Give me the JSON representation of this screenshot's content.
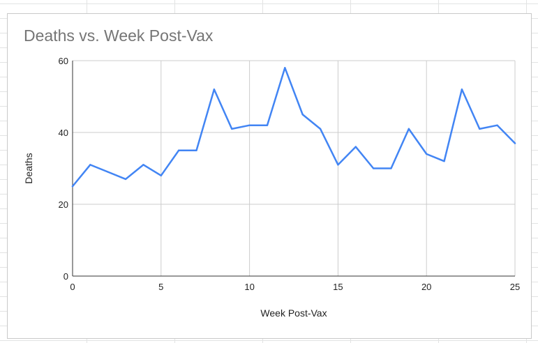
{
  "chart_data": {
    "type": "line",
    "title": "Deaths vs. Week Post-Vax",
    "xlabel": "Week Post-Vax",
    "ylabel": "Deaths",
    "xlim": [
      0,
      25
    ],
    "ylim": [
      0,
      60
    ],
    "x_ticks": [
      0,
      5,
      10,
      15,
      20,
      25
    ],
    "y_ticks": [
      0,
      20,
      40,
      60
    ],
    "grid": true,
    "series": [
      {
        "color": "#4285f4",
        "x": [
          0,
          1,
          2,
          3,
          4,
          5,
          6,
          7,
          8,
          9,
          10,
          11,
          12,
          13,
          14,
          15,
          16,
          17,
          18,
          19,
          20,
          21,
          22,
          23,
          24,
          25
        ],
        "values": [
          25,
          31,
          29,
          27,
          31,
          28,
          35,
          35,
          52,
          41,
          42,
          42,
          58,
          45,
          41,
          31,
          36,
          30,
          30,
          41,
          34,
          32,
          52,
          41,
          42,
          37
        ]
      }
    ]
  }
}
